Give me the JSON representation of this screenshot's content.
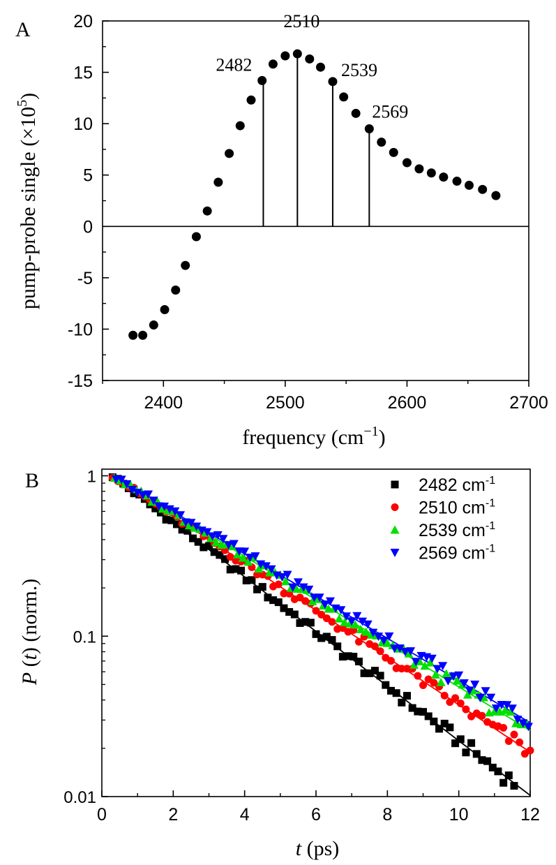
{
  "chart_data": [
    {
      "panel_label": "A",
      "type": "scatter",
      "xlabel": "frequency (cm⁻¹)",
      "ylabel": "pump-probe single (×10⁵)",
      "xlim": [
        2350,
        2700
      ],
      "ylim": [
        -15,
        20
      ],
      "xticks": [
        "2400",
        "2500",
        "2600",
        "2700"
      ],
      "yticks": [
        "20",
        "15",
        "10",
        "5",
        "0",
        "-5",
        "-10",
        "-15"
      ],
      "zero_line": true,
      "grid": false,
      "series": [
        {
          "color": "#000000",
          "marker": "circle",
          "x": [
            2375,
            2383,
            2392,
            2401,
            2410,
            2418,
            2427,
            2436,
            2445,
            2454,
            2463,
            2472,
            2481,
            2490,
            2500,
            2510,
            2520,
            2529,
            2539,
            2548,
            2558,
            2569,
            2579,
            2589,
            2600,
            2610,
            2620,
            2630,
            2641,
            2651,
            2662,
            2673
          ],
          "y": [
            -10.6,
            -10.6,
            -9.6,
            -8.1,
            -6.2,
            -3.8,
            -1.0,
            1.5,
            4.3,
            7.1,
            9.8,
            12.3,
            14.2,
            15.8,
            16.6,
            16.8,
            16.3,
            15.5,
            14.1,
            12.6,
            11.0,
            9.5,
            8.2,
            7.2,
            6.2,
            5.6,
            5.2,
            4.8,
            4.4,
            4.0,
            3.6,
            3.0
          ]
        }
      ],
      "stems": [
        {
          "x": 2482,
          "y": 14.2,
          "label": "2482"
        },
        {
          "x": 2510,
          "y": 16.8,
          "label": "2510"
        },
        {
          "x": 2539,
          "y": 14.1,
          "label": "2539"
        },
        {
          "x": 2569,
          "y": 9.5,
          "label": "2569"
        }
      ]
    },
    {
      "panel_label": "B",
      "type": "scatter",
      "xlabel": "t (ps)",
      "ylabel": "P (t) (norm.)",
      "xlim": [
        0,
        12
      ],
      "ylim": [
        0.01,
        1.1
      ],
      "yscale": "log",
      "xticks": [
        "0",
        "2",
        "4",
        "6",
        "8",
        "10",
        "12"
      ],
      "yticks": [
        "1",
        "0.1",
        "0.01"
      ],
      "legend_position": "top-right",
      "grid": false,
      "series": [
        {
          "name": "2482 cm-1",
          "color": "#000000",
          "marker": "square",
          "tau_ps": 2.55,
          "start_ps": 0.3,
          "end_ps": 11.6,
          "step_ps": 0.15,
          "fit": true
        },
        {
          "name": "2510 cm-1",
          "color": "#ff0000",
          "marker": "circle",
          "tau_ps": 2.95,
          "start_ps": 0.3,
          "end_ps": 12.0,
          "step_ps": 0.15,
          "fit": true
        },
        {
          "name": "2539 cm-1",
          "color": "#00e000",
          "marker": "triangle-up",
          "tau_ps": 3.2,
          "start_ps": 0.35,
          "end_ps": 12.0,
          "step_ps": 0.15,
          "fit": true
        },
        {
          "name": "2569 cm-1",
          "color": "#0000ff",
          "marker": "triangle-down",
          "tau_ps": 3.3,
          "start_ps": 0.4,
          "end_ps": 12.0,
          "step_ps": 0.15,
          "fit": true
        }
      ]
    }
  ]
}
